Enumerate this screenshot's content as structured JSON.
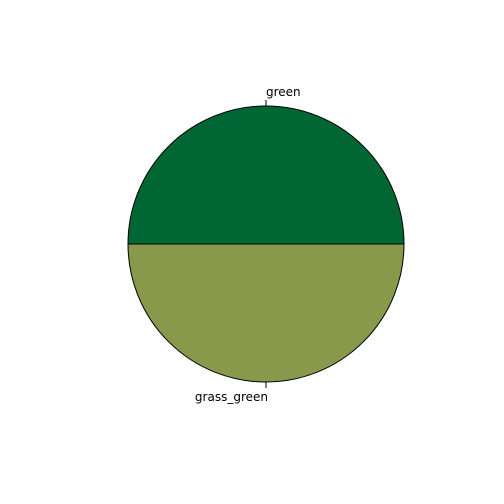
{
  "chart_data": {
    "type": "pie",
    "title": "",
    "slices": [
      {
        "label": "green",
        "value": 50,
        "color": "#006633"
      },
      {
        "label": "grass_green",
        "value": 50,
        "color": "#88994c"
      }
    ],
    "start_angle_deg": 180,
    "direction": "clockwise",
    "outline_color": "#000000",
    "background": "#ffffff"
  }
}
